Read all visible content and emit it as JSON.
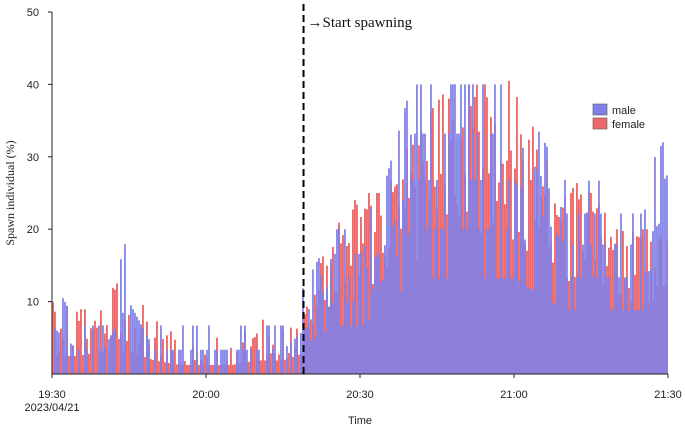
{
  "chart_data": {
    "type": "bar",
    "title": "",
    "xlabel": "Time",
    "ylabel": "Spawn individual (%)",
    "xlim": [
      "19:30",
      "21:30"
    ],
    "ylim": [
      0,
      50
    ],
    "yticks": [
      10,
      20,
      30,
      40,
      50
    ],
    "xticks": [
      "19:30",
      "20:00",
      "20:30",
      "21:00",
      "21:30"
    ],
    "start_date_label": "2023/04/21",
    "grid": false,
    "legend_position": "right",
    "colors": {
      "male": "#8080e8",
      "female": "#ee6a6a",
      "annotation_line": "#000000"
    },
    "annotation": {
      "text": "→Start spawning",
      "x": "20:19"
    },
    "series": [
      {
        "name": "male",
        "x": [
          "19:30",
          "19:35",
          "19:40",
          "19:45",
          "19:50",
          "19:55",
          "20:00",
          "20:05",
          "20:10",
          "20:15",
          "20:20",
          "20:25",
          "20:30",
          "20:35",
          "20:40",
          "20:45",
          "20:50",
          "20:55",
          "21:00",
          "21:05",
          "21:10",
          "21:15",
          "21:20",
          "21:25",
          "21:30"
        ],
        "values": [
          13.3,
          6.7,
          6.7,
          20,
          6.7,
          6.7,
          6.7,
          6.7,
          6.7,
          6.7,
          13.3,
          20,
          20,
          26.7,
          40,
          40,
          40,
          40,
          40,
          33.3,
          26.7,
          26.7,
          26.7,
          26.7,
          33.3
        ]
      },
      {
        "name": "female",
        "x": [
          "19:30",
          "19:35",
          "19:40",
          "19:45",
          "19:50",
          "19:55",
          "20:00",
          "20:05",
          "20:10",
          "20:15",
          "20:20",
          "20:25",
          "20:30",
          "20:35",
          "20:40",
          "20:45",
          "20:50",
          "20:55",
          "21:00",
          "21:05",
          "21:10",
          "21:15",
          "21:20",
          "21:25",
          "21:30"
        ],
        "values": [
          10,
          10,
          12.5,
          12.5,
          7.5,
          5,
          5,
          5,
          7.5,
          7.5,
          12.5,
          20,
          25,
          25,
          32.5,
          37.5,
          42.5,
          42.5,
          40,
          32.5,
          27.5,
          25,
          20,
          20,
          20
        ]
      }
    ]
  }
}
